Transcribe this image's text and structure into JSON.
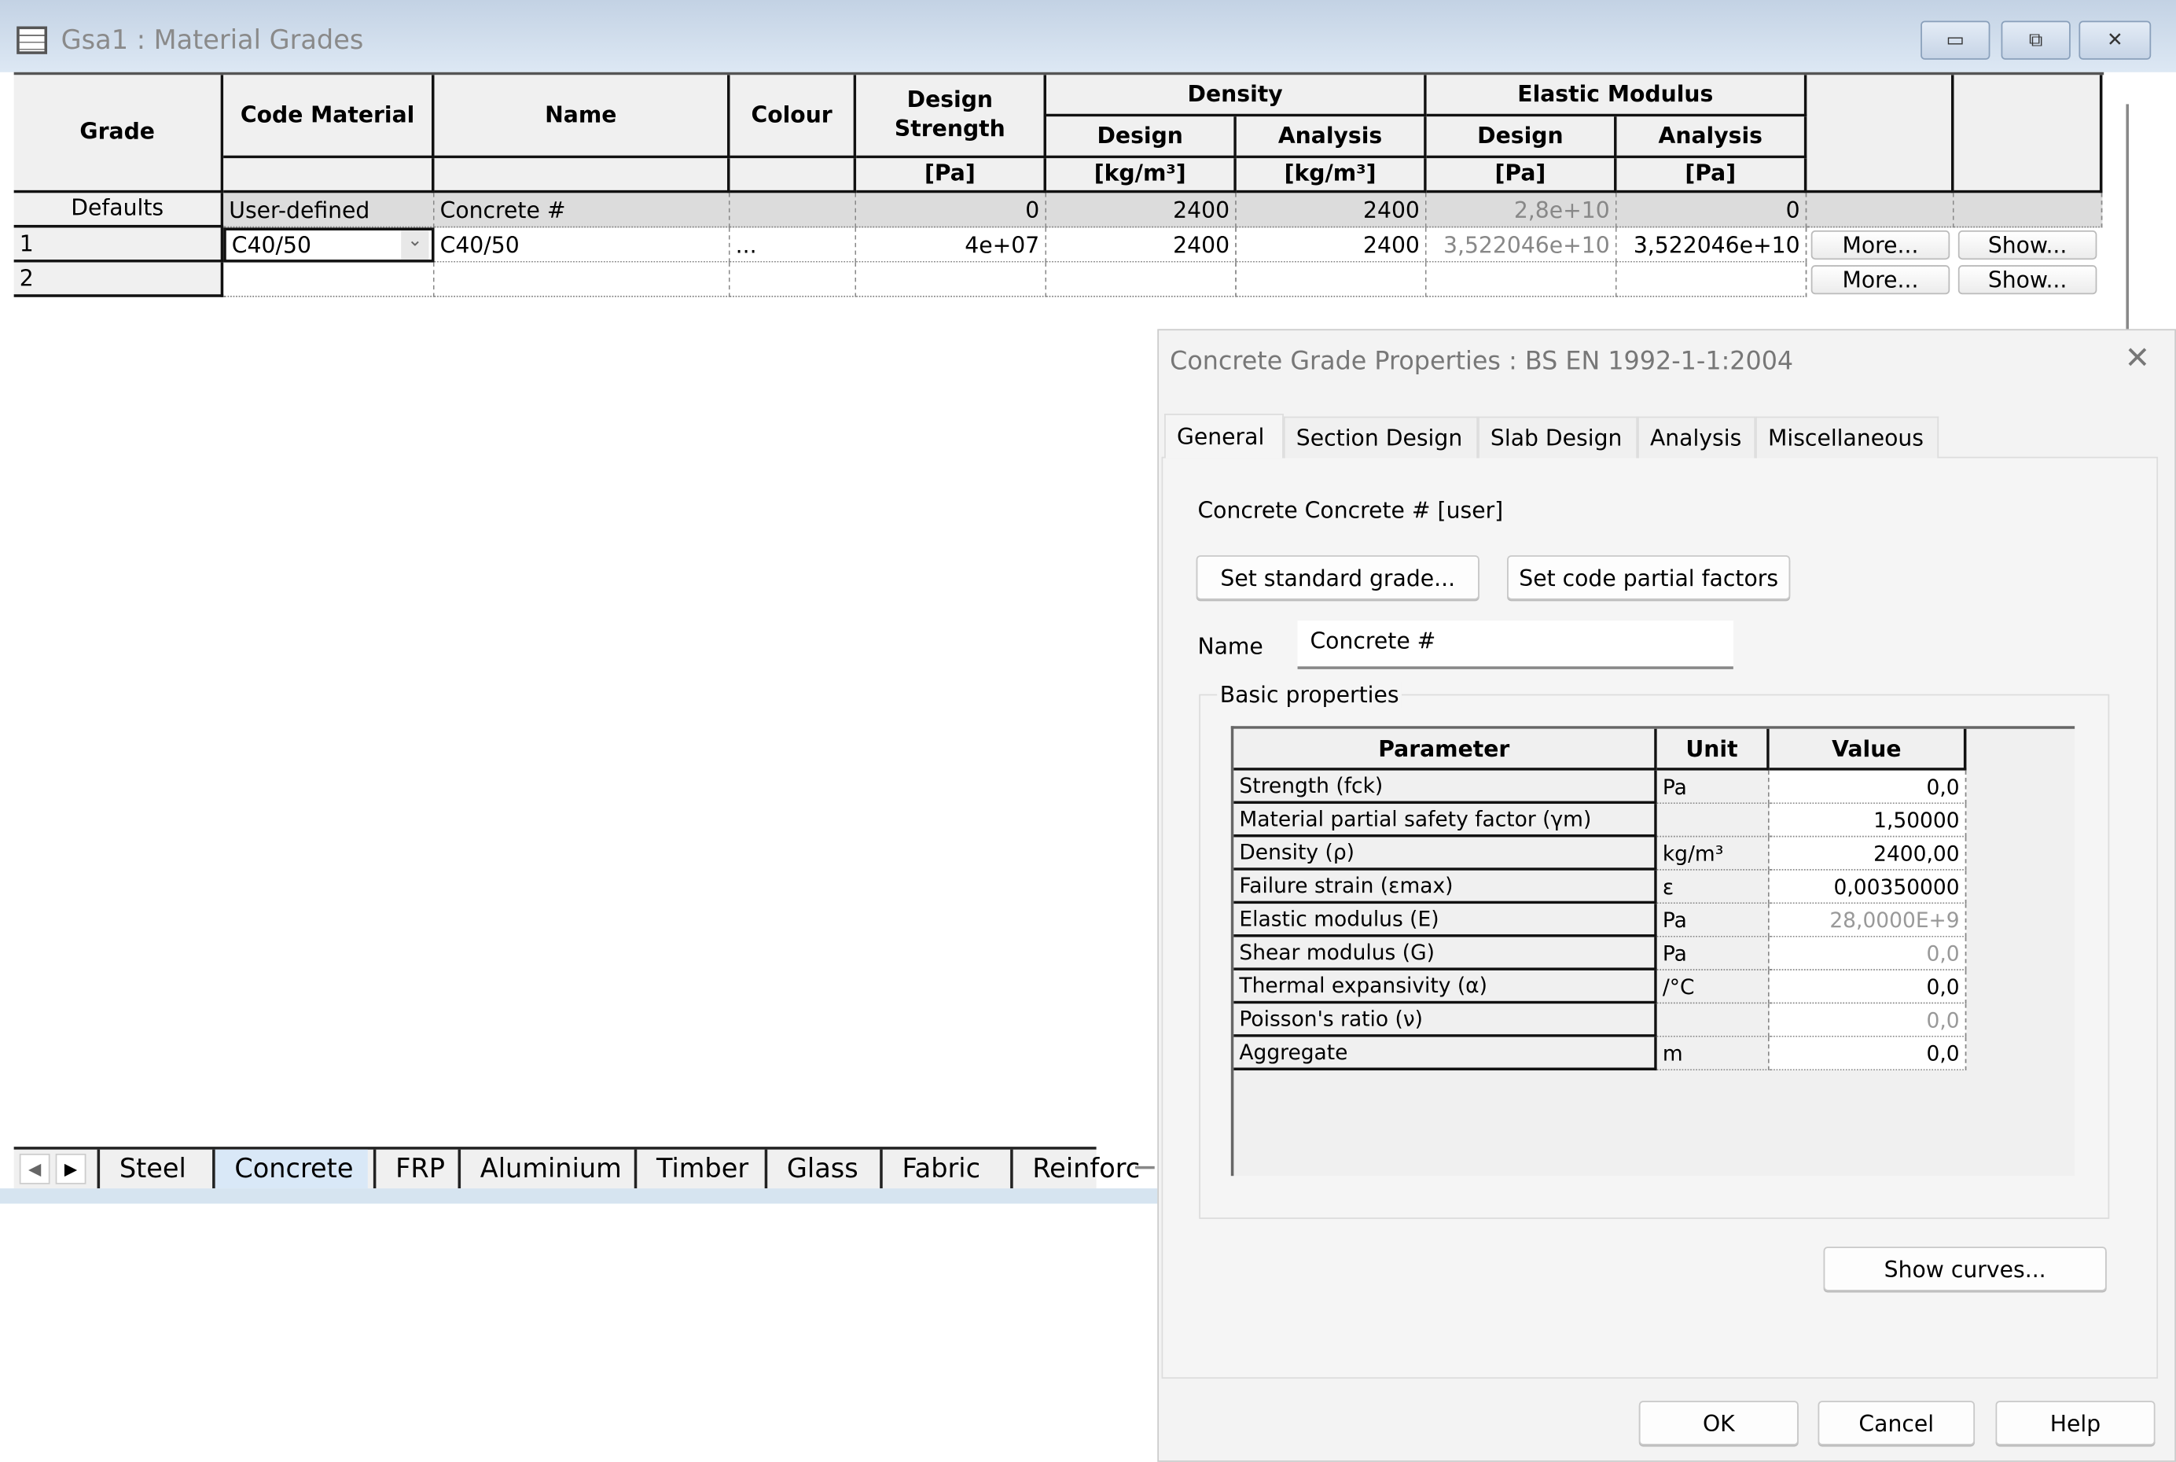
{
  "window": {
    "title": "Gsa1 : Material Grades",
    "minimize": "▭",
    "maximize": "⧉",
    "close": "✕"
  },
  "grid": {
    "headers": {
      "grade": "Grade",
      "code_material": "Code Material",
      "name": "Name",
      "colour": "Colour",
      "design_strength": "Design Strength",
      "density": "Density",
      "elastic_modulus": "Elastic Modulus",
      "design": "Design",
      "analysis": "Analysis"
    },
    "units": {
      "design_strength": "[Pa]",
      "density_design": "[kg/m³]",
      "density_analysis": "[kg/m³]",
      "elastic_design": "[Pa]",
      "elastic_analysis": "[Pa]"
    },
    "defaults": {
      "grade": "Defaults",
      "code_material": "User-defined",
      "name": "Concrete #",
      "colour": "",
      "design_strength": "0",
      "density_design": "2400",
      "density_analysis": "2400",
      "elastic_design": "2,8e+10",
      "elastic_analysis": "0"
    },
    "rows": [
      {
        "grade": "1",
        "code_material": "C40/50",
        "name": "C40/50",
        "colour": "...",
        "design_strength": "4e+07",
        "density_design": "2400",
        "density_analysis": "2400",
        "elastic_design": "3,522046e+10",
        "elastic_analysis": "3,522046e+10",
        "more": "More...",
        "show": "Show..."
      },
      {
        "grade": "2",
        "code_material": "",
        "name": "",
        "colour": "",
        "design_strength": "",
        "density_design": "",
        "density_analysis": "",
        "elastic_design": "",
        "elastic_analysis": "",
        "more": "More...",
        "show": "Show..."
      }
    ]
  },
  "sheet_tabs": {
    "active": "Concrete",
    "items": [
      "Steel",
      "Concrete",
      "FRP",
      "Aluminium",
      "Timber",
      "Glass",
      "Fabric",
      "Reinforc"
    ]
  },
  "dialog": {
    "title": "Concrete Grade Properties : BS EN 1992-1-1:2004",
    "tabs": [
      "General",
      "Section Design",
      "Slab Design",
      "Analysis",
      "Miscellaneous"
    ],
    "active_tab": "General",
    "description": "Concrete Concrete # [user]",
    "set_standard_grade": "Set standard grade...",
    "set_code_partial_factors": "Set code partial factors",
    "name_label": "Name",
    "name_value": "Concrete #",
    "group_label": "Basic properties",
    "table": {
      "headers": [
        "Parameter",
        "Unit",
        "Value"
      ],
      "rows": [
        {
          "parameter": "Strength (fck)",
          "unit": "Pa",
          "value": "0,0",
          "greyed": false
        },
        {
          "parameter": "Material partial safety factor (γm)",
          "unit": "",
          "value": "1,50000",
          "greyed": false
        },
        {
          "parameter": "Density (ρ)",
          "unit": "kg/m³",
          "value": "2400,00",
          "greyed": false
        },
        {
          "parameter": "Failure strain (εmax)",
          "unit": "ε",
          "value": "0,00350000",
          "greyed": false
        },
        {
          "parameter": "Elastic modulus (E)",
          "unit": "Pa",
          "value": "28,0000E+9",
          "greyed": true
        },
        {
          "parameter": "Shear modulus (G)",
          "unit": "Pa",
          "value": "0,0",
          "greyed": true
        },
        {
          "parameter": "Thermal expansivity (α)",
          "unit": "/°C",
          "value": "0,0",
          "greyed": false
        },
        {
          "parameter": "Poisson's ratio (ν)",
          "unit": "",
          "value": "0,0",
          "greyed": true
        },
        {
          "parameter": "Aggregate",
          "unit": "m",
          "value": "0,0",
          "greyed": false
        }
      ]
    },
    "show_curves": "Show curves...",
    "ok": "OK",
    "cancel": "Cancel",
    "help": "Help",
    "close": "✕"
  }
}
